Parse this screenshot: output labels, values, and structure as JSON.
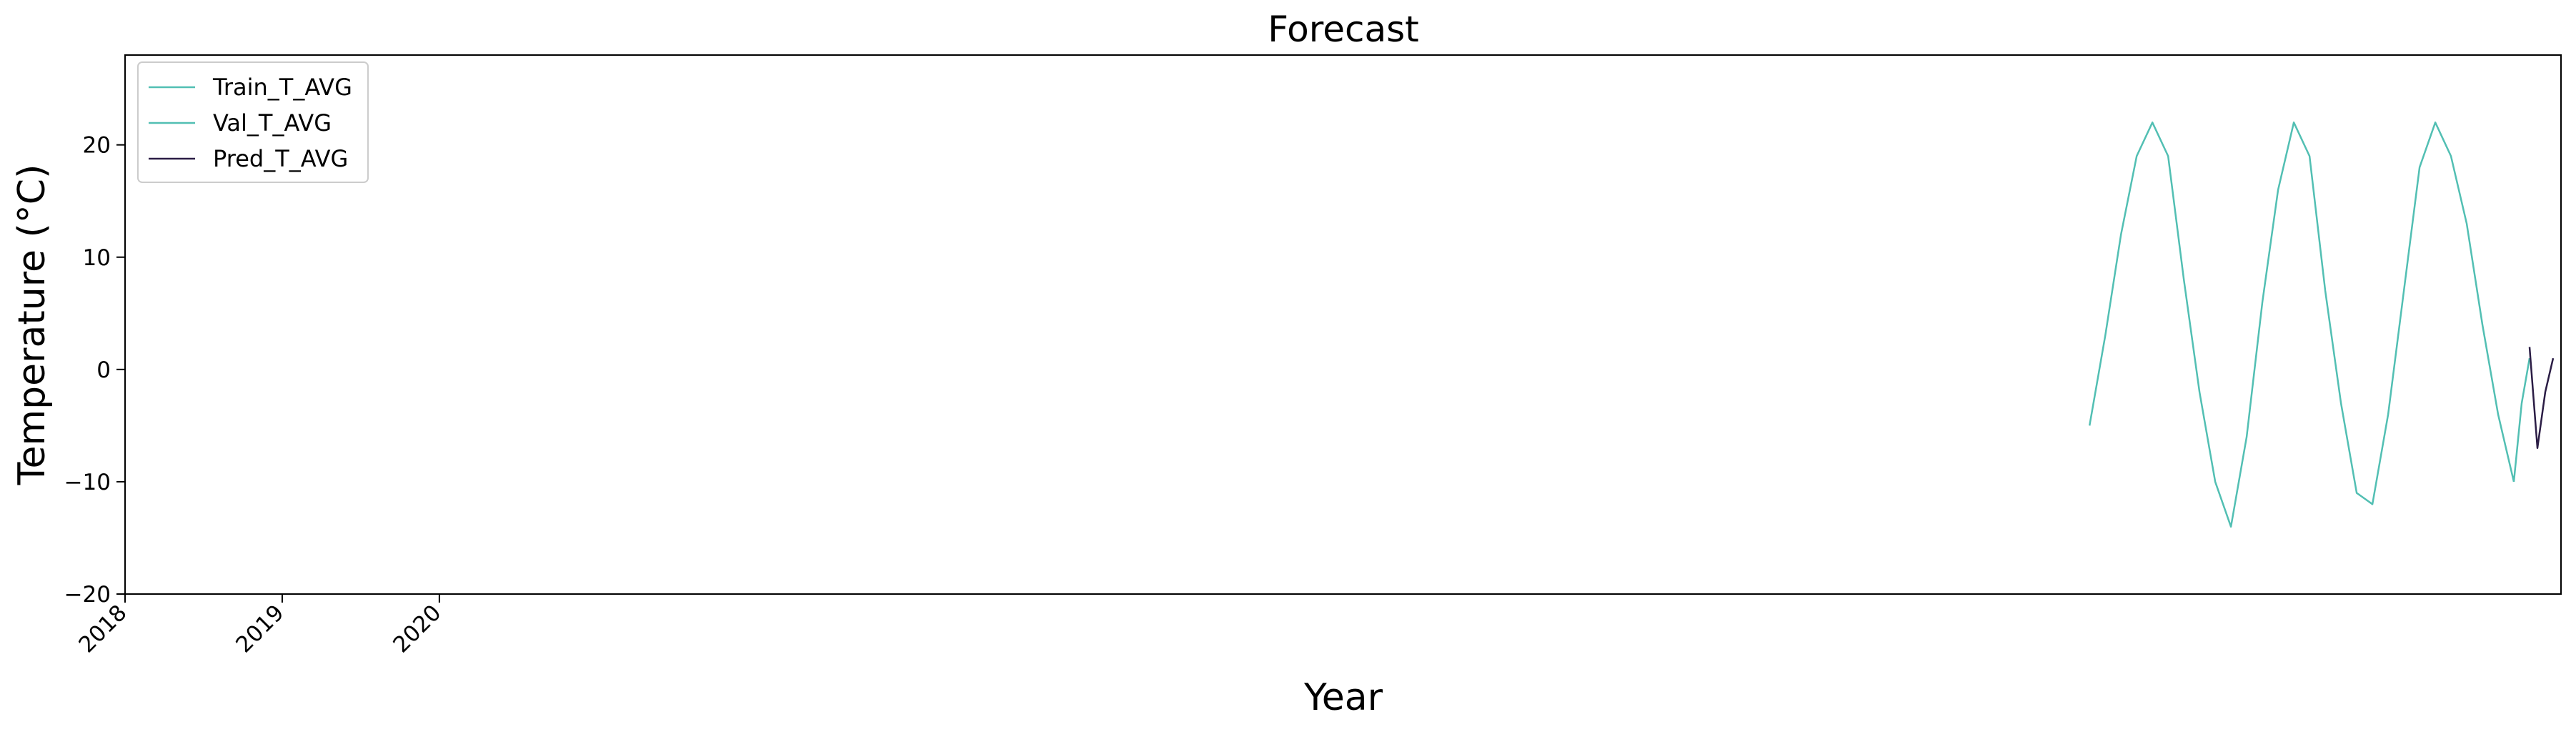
{
  "colors": {
    "train": "#52bfb3",
    "val": "#52bfb3",
    "pred": "#2b1d45"
  },
  "chart_data": {
    "type": "line",
    "title": "Forecast",
    "xlabel": "Year",
    "ylabel": "Temperature (°C)",
    "ylim": [
      -20,
      28
    ],
    "xlim": [
      2018.0,
      2033.5
    ],
    "yticks": [
      -20,
      -10,
      0,
      10,
      20
    ],
    "xticks": [
      {
        "value": 2018.0,
        "label": "2018"
      },
      {
        "value": 2019.0,
        "label": "2019"
      },
      {
        "value": 2020.0,
        "label": "2020"
      }
    ],
    "grid": false,
    "legend": "top-left",
    "series": [
      {
        "name": "Train_T_AVG",
        "x": [
          2030.5,
          2030.6,
          2030.7,
          2030.8,
          2030.9,
          2031.0,
          2031.1,
          2031.2,
          2031.3,
          2031.4,
          2031.5,
          2031.6,
          2031.7,
          2031.8,
          2031.9,
          2032.0,
          2032.1,
          2032.2,
          2032.3,
          2032.4,
          2032.5,
          2032.6,
          2032.7,
          2032.8,
          2032.9,
          2033.0,
          2033.1,
          2033.2
        ],
        "y": [
          -5,
          3,
          12,
          19,
          22,
          19,
          8,
          -2,
          -10,
          -14,
          -6,
          6,
          16,
          22,
          19,
          7,
          -3,
          -11,
          -12,
          -4,
          7,
          18,
          22,
          19,
          13,
          4,
          -4,
          -10
        ]
      },
      {
        "name": "Val_T_AVG",
        "x": [
          2033.2,
          2033.25,
          2033.3
        ],
        "y": [
          -10,
          -3,
          1
        ]
      },
      {
        "name": "Pred_T_AVG",
        "x": [
          2033.3,
          2033.35,
          2033.4,
          2033.45
        ],
        "y": [
          2,
          -7,
          -2,
          1
        ]
      }
    ]
  }
}
